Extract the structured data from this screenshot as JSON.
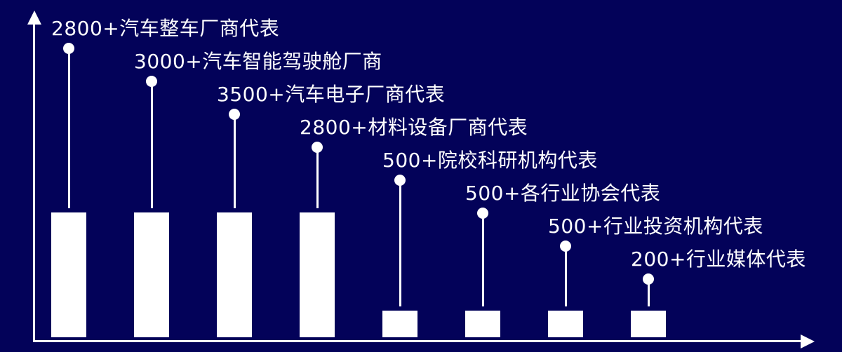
{
  "chart_data": {
    "type": "bar",
    "title": "",
    "xlabel": "",
    "ylabel": "",
    "grid": false,
    "legend_position": "none",
    "categories": [
      "2800+汽车整车厂商代表",
      "3000+汽车智能驾驶舱厂商",
      "3500+汽车电子厂商代表",
      "2800+材料设备厂商代表",
      "500+院校科研机构代表",
      "500+各行业协会代表",
      "500+行业投资机构代表",
      "200+行业媒体代表"
    ],
    "values": [
      2800,
      3000,
      3500,
      2800,
      500,
      500,
      500,
      200
    ],
    "items": [
      {
        "label": "2800+汽车整车厂商代表",
        "value": 2800,
        "size": "tall"
      },
      {
        "label": "3000+汽车智能驾驶舱厂商",
        "value": 3000,
        "size": "tall"
      },
      {
        "label": "3500+汽车电子厂商代表",
        "value": 3500,
        "size": "tall"
      },
      {
        "label": "2800+材料设备厂商代表",
        "value": 2800,
        "size": "tall"
      },
      {
        "label": "500+院校科研机构代表",
        "value": 500,
        "size": "short"
      },
      {
        "label": "500+各行业协会代表",
        "value": 500,
        "size": "short"
      },
      {
        "label": "500+行业投资机构代表",
        "value": 500,
        "size": "short"
      },
      {
        "label": "200+行业媒体代表",
        "value": 200,
        "size": "short"
      }
    ],
    "style_notes": "white lollipop callouts above white bars on dark navy background; labels staircase downward left to right; first four bars tall, last four bars short; axes drawn as white arrows"
  },
  "colors": {
    "background": "#030259",
    "bar": "#ffffff",
    "text": "#ffffff",
    "axis": "#ffffff"
  }
}
